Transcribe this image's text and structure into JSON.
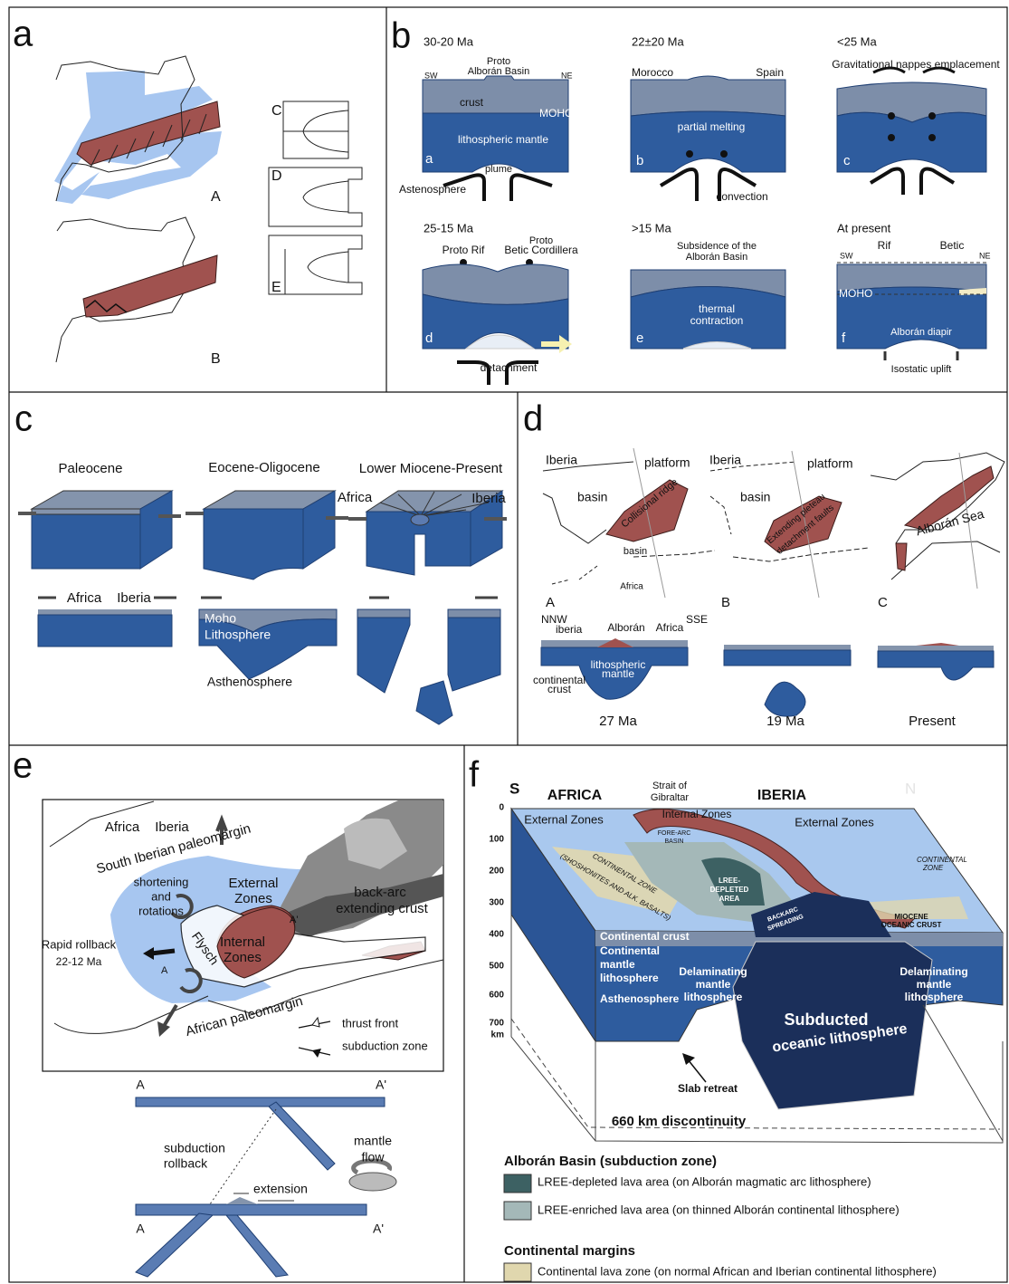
{
  "panels": {
    "a": {
      "texts": [
        "a",
        "A",
        "B",
        "C",
        "D",
        "E"
      ]
    },
    "b": {
      "texts": [
        "b",
        "30-20 Ma",
        "22±20 Ma",
        "<25 Ma",
        "25-15 Ma",
        ">15 Ma",
        "At present",
        "Proto",
        "Alborán Basin",
        "SW",
        "NE",
        "crust",
        "MOHO",
        "lithospheric mantle",
        "a",
        "plume",
        "Astenosphere",
        "Morocco",
        "Spain",
        "partial melting",
        "b",
        "convection",
        "Gravitational nappes emplacement",
        "c",
        "Proto Rif",
        "Proto",
        "Betic Cordillera",
        "d",
        "detachment",
        "Subsidence of the",
        "Alborán Basin",
        "thermal",
        "contraction",
        "e",
        "Rif",
        "Betic",
        "SW",
        "NE",
        "MOHO",
        "Alborán diapir",
        "f",
        "Isostatic uplift"
      ]
    },
    "c": {
      "texts": [
        "c",
        "Paleocene",
        "Eocene-Oligocene",
        "Lower Miocene-Present",
        "Africa",
        "Iberia",
        "Africa",
        "Iberia",
        "Moho",
        "Lithosphere",
        "Asthenosphere"
      ]
    },
    "d": {
      "texts": [
        "d",
        "Iberia",
        "platform",
        "basin",
        "Collisional ridge",
        "basin",
        "Africa",
        "Iberia",
        "platform",
        "basin",
        "Extending pleteau",
        "detachment faults",
        "Alborán Sea",
        "A",
        "B",
        "C",
        "NNW",
        "iberia",
        "Alborán",
        "Africa",
        "SSE",
        "lithospheric",
        "mantle",
        "continental",
        "crust",
        "27 Ma",
        "19 Ma",
        "Present"
      ]
    },
    "e": {
      "texts": [
        "e",
        "Africa",
        "Iberia",
        "South Iberian paleomargin",
        "shortening",
        "and",
        "rotations",
        "External",
        "Zones",
        "back-arc",
        "extending crust",
        "Rapid rollback",
        "22-12 Ma",
        "Internal",
        "Zones",
        "Flysch",
        "A",
        "A'",
        "African paleomargin",
        "thrust front",
        "subduction zone",
        "A",
        "A'",
        "subduction",
        "rollback",
        "mantle",
        "flow",
        "extension",
        "A",
        "A'"
      ]
    },
    "f": {
      "texts": [
        "f",
        "S",
        "AFRICA",
        "Strait of",
        "Gibraltar",
        "IBERIA",
        "N",
        "0",
        "100",
        "200",
        "300",
        "400",
        "500",
        "600",
        "700",
        "km",
        "External Zones",
        "Internal Zones",
        "External Zones",
        "FORE-ARC",
        "BASIN",
        "CONTINENTAL",
        "ZONE",
        "LREE-",
        "DEPLETED",
        "AREA",
        "CONTINENTAL ZONE",
        "(SHOSHONITES AND ALK. BASALTS)",
        "BACKARC",
        "SPREADING",
        "MIOCENE",
        "OCEANIC CRUST",
        "Continental crust",
        "Continental",
        "mantle",
        "lithosphere",
        "Delaminating",
        "mantle",
        "lithosphere",
        "Delaminating",
        "mantle",
        "lithosphere",
        "Asthenosphere",
        "Subducted",
        "oceanic lithosphere",
        "Slab retreat",
        "660 km discontinuity",
        "Alborán Basin (subduction zone)",
        "LREE-depleted lava area (on Alborán magmatic arc lithosphere)",
        "LREE-enriched lava area (on thinned Alborán continental lithosphere)",
        "Continental margins",
        "Continental lava zone (on normal African and Iberian continental lithosphere)"
      ]
    }
  }
}
